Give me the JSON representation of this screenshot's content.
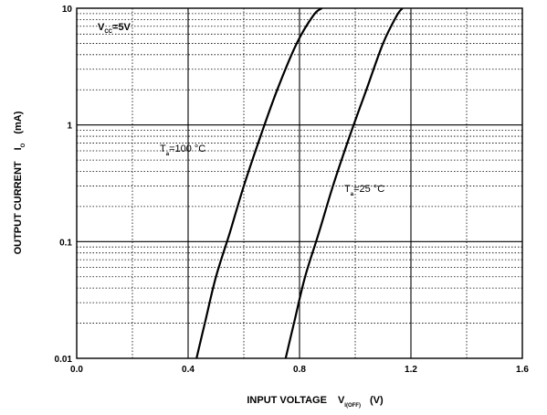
{
  "chart_data": {
    "type": "line",
    "xlabel": {
      "text": "INPUT VOLTAGE",
      "symbol": "V",
      "symbol_sub": "I(OFF)",
      "unit": "(V)"
    },
    "ylabel": {
      "text": "OUTPUT CURRENT",
      "symbol": "I",
      "symbol_sub": "O",
      "unit": "(mA)"
    },
    "xlim": [
      0.0,
      1.6
    ],
    "ylim": [
      0.01,
      10
    ],
    "yscale": "log",
    "x_ticks": [
      "0.0",
      "0.4",
      "0.8",
      "1.2",
      "1.6"
    ],
    "y_ticks": [
      "10",
      "1",
      "0.1",
      "0.01"
    ],
    "grid": true,
    "condition": {
      "symbol": "V",
      "sub": "CC",
      "value": "=5V"
    },
    "series": [
      {
        "label": {
          "symbol": "T",
          "sub": "a",
          "value": "=100 °C"
        },
        "x": [
          0.43,
          0.46,
          0.5,
          0.55,
          0.6,
          0.66,
          0.72,
          0.79,
          0.85,
          0.88
        ],
        "y": [
          0.01,
          0.02,
          0.05,
          0.12,
          0.3,
          0.8,
          2.0,
          5.0,
          8.7,
          10
        ]
      },
      {
        "label": {
          "symbol": "T",
          "sub": "a",
          "value": "=25 °C"
        },
        "x": [
          0.75,
          0.78,
          0.82,
          0.87,
          0.92,
          0.98,
          1.04,
          1.1,
          1.15,
          1.17
        ],
        "y": [
          0.01,
          0.02,
          0.05,
          0.12,
          0.3,
          0.8,
          2.0,
          5.0,
          8.7,
          10
        ]
      }
    ]
  }
}
